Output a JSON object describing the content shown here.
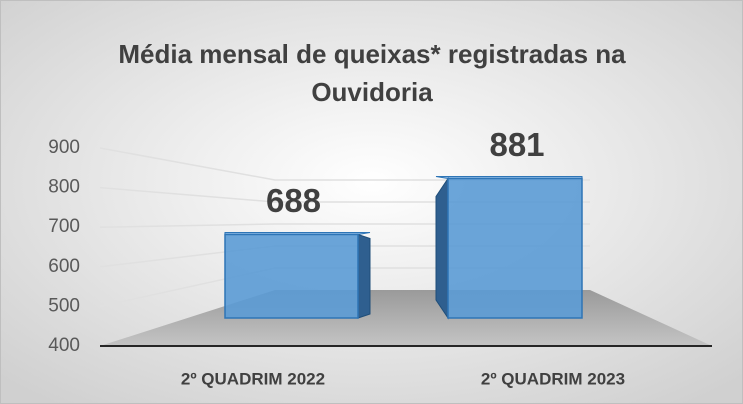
{
  "chart_data": {
    "type": "bar3d",
    "title": [
      "Média mensal de queixas* registradas na",
      "Ouvidoria"
    ],
    "categories": [
      "2º QUADRIM 2022",
      "2º QUADRIM 2023"
    ],
    "values": [
      688,
      881
    ],
    "color": "#5b9bd5",
    "ylim": [
      400,
      900
    ],
    "yticks": [
      400,
      500,
      600,
      700,
      800,
      900
    ],
    "grid": true
  }
}
